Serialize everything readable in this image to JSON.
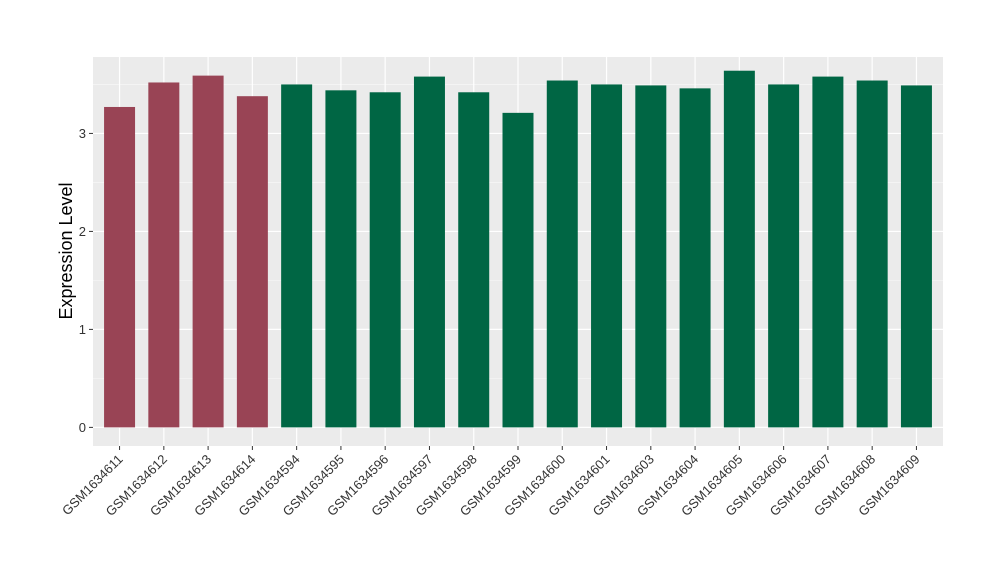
{
  "chart_data": {
    "type": "bar",
    "title": "",
    "xlabel": "",
    "ylabel": "Expression Level",
    "ylim": [
      -0.19,
      3.78
    ],
    "yticks": [
      0,
      1,
      2,
      3
    ],
    "grid": true,
    "legend": "none",
    "categories": [
      "GSM1634611",
      "GSM1634612",
      "GSM1634613",
      "GSM1634614",
      "GSM1634594",
      "GSM1634595",
      "GSM1634596",
      "GSM1634597",
      "GSM1634598",
      "GSM1634599",
      "GSM1634600",
      "GSM1634601",
      "GSM1634603",
      "GSM1634604",
      "GSM1634605",
      "GSM1634606",
      "GSM1634607",
      "GSM1634608",
      "GSM1634609"
    ],
    "values": [
      3.27,
      3.52,
      3.59,
      3.38,
      3.5,
      3.44,
      3.42,
      3.58,
      3.42,
      3.21,
      3.54,
      3.5,
      3.49,
      3.46,
      3.64,
      3.5,
      3.58,
      3.54,
      3.49
    ],
    "groups": [
      0,
      0,
      0,
      0,
      1,
      1,
      1,
      1,
      1,
      1,
      1,
      1,
      1,
      1,
      1,
      1,
      1,
      1,
      1
    ],
    "group_colors": [
      "#994455",
      "#006644"
    ]
  }
}
